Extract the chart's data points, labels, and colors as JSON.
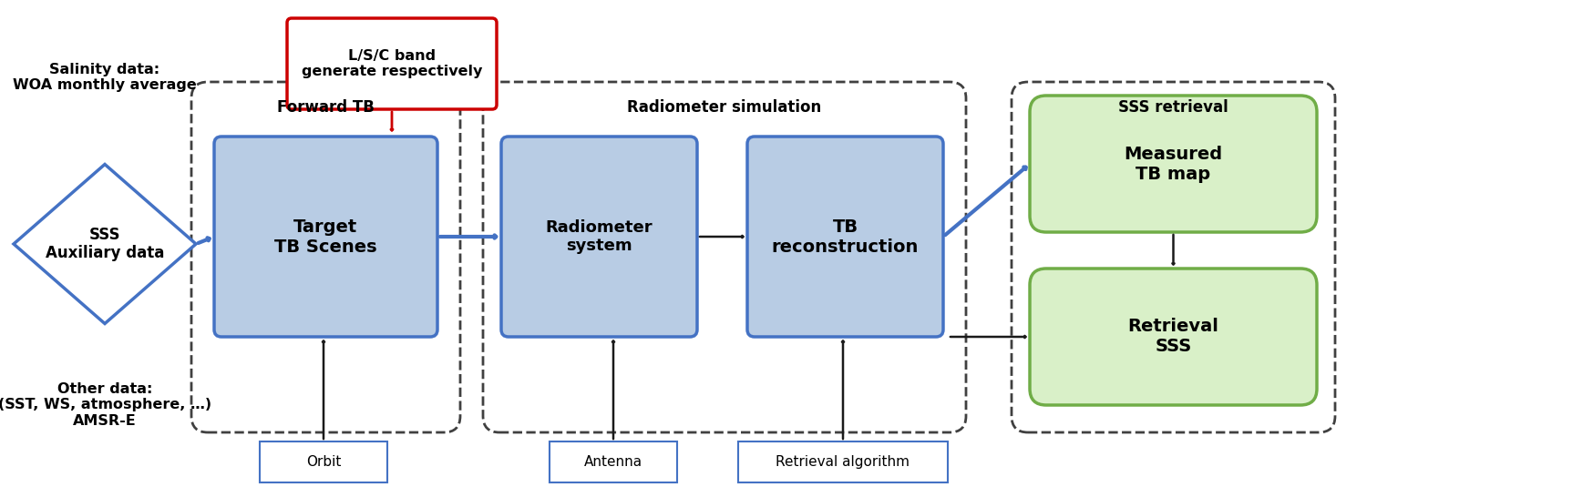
{
  "bg_color": "#ffffff",
  "blue_box_fill": "#b8cce4",
  "blue_box_edge": "#4472c4",
  "green_box_fill": "#d9f0c8",
  "green_box_edge": "#70ad47",
  "dashed_box_edge": "#404040",
  "red_box_edge": "#cc0000",
  "red_box_fill": "#ffffff",
  "diamond_color": "#4472c4",
  "diamond_fill": "#ffffff",
  "arrow_blue": "#4472c4",
  "arrow_black": "#1a1a1a",
  "arrow_red": "#cc0000",
  "text_color": "#000000",
  "salinity_text": "Salinity data:\nWOA monthly average",
  "other_text": "Other data:\n(SST, WS, atmosphere, …)\nAMSR-E",
  "diamond_text": "SSS\nAuxiliary data",
  "lsc_text": "L/S/C band\ngenerate respectively",
  "forward_tb_text": "Forward TB",
  "target_tb_text": "Target\nTB Scenes",
  "rad_sim_text": "Radiometer simulation",
  "rad_sys_text": "Radiometer\nsystem",
  "tb_recon_text": "TB\nreconstruction",
  "sss_ret_text": "SSS retrieval",
  "meas_tb_text": "Measured\nTB map",
  "ret_sss_text": "Retrieval\nSSS",
  "orbit_text": "Orbit",
  "antenna_text": "Antenna",
  "retrieval_alg_text": "Retrieval algorithm",
  "figw": 17.49,
  "figh": 5.35,
  "dpi": 100
}
